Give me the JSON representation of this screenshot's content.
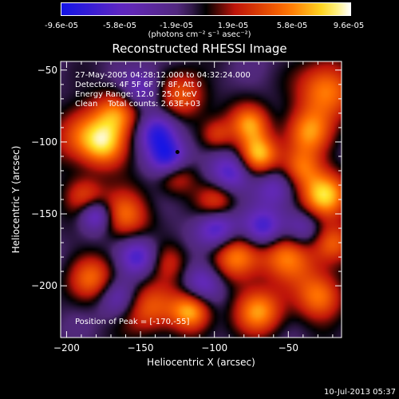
{
  "colorbar": {
    "ticks": [
      "-9.6e-05",
      "-5.8e-05",
      "-1.9e-05",
      "1.9e-05",
      "5.8e-05",
      "9.6e-05"
    ],
    "units": "(photons cm⁻² s⁻¹ asec⁻²)"
  },
  "timestamp": "10-Jul-2013 05:37",
  "chart_data": {
    "type": "heatmap",
    "title": "Reconstructed RHESSI Image",
    "xlabel": "Heliocentric X (arcsec)",
    "ylabel": "Heliocentric Y (arcsec)",
    "xlim": [
      -204,
      -14
    ],
    "ylim": [
      -236,
      -44
    ],
    "xticks": [
      -200,
      -150,
      -100,
      -50
    ],
    "yticks": [
      -200,
      -150,
      -100,
      -50
    ],
    "xtick_labels": [
      "−200",
      "−150",
      "−100",
      "−50"
    ],
    "ytick_labels": [
      "−200",
      "−150",
      "−100",
      "−50"
    ],
    "value_range": [
      -9.6e-05,
      9.6e-05
    ],
    "peak": {
      "x": -170,
      "y": -55
    },
    "min_marker": {
      "x": -125,
      "y": -107
    },
    "annotations": {
      "time_range": "27-May-2005 04:28:12.000 to 04:32:24.000",
      "detectors": "Detectors: 4F 5F 6F 7F 8F, Att 0",
      "energy": "Energy Range: 12.0 - 25.0 keV",
      "clean": "Clean    Total counts: 2.63E+03",
      "peak_label": "Position of Peak = [-170,-55]"
    }
  }
}
